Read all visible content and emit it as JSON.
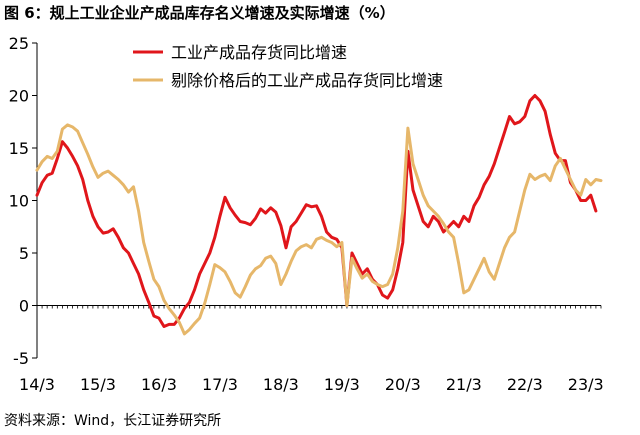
{
  "title": "图 6：规上工业企业产成品库存名义增速及实际增速（%）",
  "source": "资料来源：Wind，长江证券研究所",
  "colors": {
    "nominal": "#e0161b",
    "real": "#e6b76a",
    "axis": "#000000"
  },
  "chart_data": {
    "type": "line",
    "title": "图 6：规上工业企业产成品库存名义增速及实际增速（%）",
    "xlabel": "",
    "ylabel": "",
    "ylim": [
      -5,
      25
    ],
    "yticks": [
      -5,
      0,
      5,
      10,
      15,
      20,
      25
    ],
    "xlim": [
      "2014-03",
      "2023-06"
    ],
    "xtick_labels": [
      "14/3",
      "15/3",
      "16/3",
      "17/3",
      "18/3",
      "19/3",
      "20/3",
      "21/3",
      "22/3",
      "23/3"
    ],
    "grid": false,
    "legend_position": "top-center",
    "series": [
      {
        "name": "工业产成品存货同比增速",
        "color": "#e0161b",
        "points": [
          [
            "2014-03",
            10.5
          ],
          [
            "2014-04",
            11.7
          ],
          [
            "2014-05",
            12.4
          ],
          [
            "2014-06",
            12.6
          ],
          [
            "2014-07",
            14.0
          ],
          [
            "2014-08",
            15.6
          ],
          [
            "2014-09",
            15.0
          ],
          [
            "2014-10",
            14.2
          ],
          [
            "2014-11",
            13.3
          ],
          [
            "2014-12",
            12.0
          ],
          [
            "2015-01",
            10.0
          ],
          [
            "2015-02",
            8.5
          ],
          [
            "2015-03",
            7.5
          ],
          [
            "2015-04",
            6.9
          ],
          [
            "2015-05",
            7.0
          ],
          [
            "2015-06",
            7.3
          ],
          [
            "2015-07",
            6.5
          ],
          [
            "2015-08",
            5.5
          ],
          [
            "2015-09",
            5.0
          ],
          [
            "2015-10",
            4.0
          ],
          [
            "2015-11",
            3.0
          ],
          [
            "2015-12",
            1.5
          ],
          [
            "2016-01",
            0.3
          ],
          [
            "2016-02",
            -1.0
          ],
          [
            "2016-03",
            -1.2
          ],
          [
            "2016-04",
            -2.0
          ],
          [
            "2016-05",
            -1.8
          ],
          [
            "2016-06",
            -1.8
          ],
          [
            "2016-07",
            -1.2
          ],
          [
            "2016-08",
            -0.3
          ],
          [
            "2016-09",
            0.3
          ],
          [
            "2016-10",
            1.5
          ],
          [
            "2016-11",
            3.0
          ],
          [
            "2016-12",
            4.0
          ],
          [
            "2017-01",
            5.0
          ],
          [
            "2017-02",
            6.5
          ],
          [
            "2017-03",
            8.5
          ],
          [
            "2017-04",
            10.3
          ],
          [
            "2017-05",
            9.3
          ],
          [
            "2017-06",
            8.6
          ],
          [
            "2017-07",
            8.0
          ],
          [
            "2017-08",
            7.9
          ],
          [
            "2017-09",
            7.7
          ],
          [
            "2017-10",
            8.3
          ],
          [
            "2017-11",
            9.2
          ],
          [
            "2017-12",
            8.8
          ],
          [
            "2018-01",
            9.3
          ],
          [
            "2018-02",
            8.9
          ],
          [
            "2018-03",
            7.6
          ],
          [
            "2018-04",
            5.5
          ],
          [
            "2018-05",
            7.5
          ],
          [
            "2018-06",
            8.0
          ],
          [
            "2018-07",
            8.8
          ],
          [
            "2018-08",
            9.6
          ],
          [
            "2018-09",
            9.4
          ],
          [
            "2018-10",
            9.5
          ],
          [
            "2018-11",
            8.5
          ],
          [
            "2018-12",
            7.0
          ],
          [
            "2019-01",
            6.5
          ],
          [
            "2019-02",
            6.3
          ],
          [
            "2019-03",
            5.5
          ],
          [
            "2019-04",
            0.0
          ],
          [
            "2019-05",
            5.0
          ],
          [
            "2019-06",
            4.0
          ],
          [
            "2019-07",
            3.0
          ],
          [
            "2019-08",
            3.5
          ],
          [
            "2019-09",
            2.5
          ],
          [
            "2019-10",
            2.0
          ],
          [
            "2019-11",
            1.0
          ],
          [
            "2019-12",
            0.7
          ],
          [
            "2020-01",
            1.5
          ],
          [
            "2020-02",
            3.5
          ],
          [
            "2020-03",
            6.0
          ],
          [
            "2020-04",
            14.7
          ],
          [
            "2020-05",
            11.0
          ],
          [
            "2020-06",
            9.5
          ],
          [
            "2020-07",
            8.0
          ],
          [
            "2020-08",
            7.5
          ],
          [
            "2020-09",
            8.5
          ],
          [
            "2020-10",
            8.0
          ],
          [
            "2020-11",
            7.0
          ],
          [
            "2020-12",
            7.5
          ],
          [
            "2021-01",
            8.0
          ],
          [
            "2021-02",
            7.5
          ],
          [
            "2021-03",
            8.5
          ],
          [
            "2021-04",
            8.0
          ],
          [
            "2021-05",
            9.5
          ],
          [
            "2021-06",
            10.3
          ],
          [
            "2021-07",
            11.5
          ],
          [
            "2021-08",
            12.3
          ],
          [
            "2021-09",
            13.5
          ],
          [
            "2021-10",
            15.0
          ],
          [
            "2021-11",
            16.5
          ],
          [
            "2021-12",
            18.0
          ],
          [
            "2022-01",
            17.3
          ],
          [
            "2022-02",
            17.5
          ],
          [
            "2022-03",
            18.0
          ],
          [
            "2022-04",
            19.5
          ],
          [
            "2022-05",
            20.0
          ],
          [
            "2022-06",
            19.5
          ],
          [
            "2022-07",
            18.5
          ],
          [
            "2022-08",
            16.3
          ],
          [
            "2022-09",
            14.5
          ],
          [
            "2022-10",
            13.8
          ],
          [
            "2022-11",
            13.8
          ],
          [
            "2022-12",
            11.7
          ],
          [
            "2023-01",
            11.0
          ],
          [
            "2023-02",
            10.0
          ],
          [
            "2023-03",
            10.0
          ],
          [
            "2023-04",
            10.5
          ],
          [
            "2023-05",
            9.0
          ]
        ]
      },
      {
        "name": "剔除价格后的工业产成品存货同比增速",
        "color": "#e6b76a",
        "points": [
          [
            "2014-03",
            12.9
          ],
          [
            "2014-04",
            13.7
          ],
          [
            "2014-05",
            14.2
          ],
          [
            "2014-06",
            14.0
          ],
          [
            "2014-07",
            14.7
          ],
          [
            "2014-08",
            16.8
          ],
          [
            "2014-09",
            17.2
          ],
          [
            "2014-10",
            17.0
          ],
          [
            "2014-11",
            16.6
          ],
          [
            "2014-12",
            15.5
          ],
          [
            "2015-01",
            14.4
          ],
          [
            "2015-02",
            13.2
          ],
          [
            "2015-03",
            12.2
          ],
          [
            "2015-04",
            12.6
          ],
          [
            "2015-05",
            12.8
          ],
          [
            "2015-06",
            12.4
          ],
          [
            "2015-07",
            12.0
          ],
          [
            "2015-08",
            11.5
          ],
          [
            "2015-09",
            10.8
          ],
          [
            "2015-10",
            11.3
          ],
          [
            "2015-11",
            9.0
          ],
          [
            "2015-12",
            6.0
          ],
          [
            "2016-01",
            4.2
          ],
          [
            "2016-02",
            2.5
          ],
          [
            "2016-03",
            1.8
          ],
          [
            "2016-04",
            0.5
          ],
          [
            "2016-05",
            -0.3
          ],
          [
            "2016-06",
            -0.9
          ],
          [
            "2016-07",
            -1.6
          ],
          [
            "2016-08",
            -2.7
          ],
          [
            "2016-09",
            -2.3
          ],
          [
            "2016-10",
            -1.7
          ],
          [
            "2016-11",
            -1.2
          ],
          [
            "2016-12",
            0.2
          ],
          [
            "2017-01",
            2.0
          ],
          [
            "2017-02",
            3.9
          ],
          [
            "2017-03",
            3.6
          ],
          [
            "2017-04",
            3.2
          ],
          [
            "2017-05",
            2.3
          ],
          [
            "2017-06",
            1.2
          ],
          [
            "2017-07",
            0.8
          ],
          [
            "2017-08",
            1.8
          ],
          [
            "2017-09",
            2.9
          ],
          [
            "2017-10",
            3.5
          ],
          [
            "2017-11",
            3.8
          ],
          [
            "2017-12",
            4.5
          ],
          [
            "2018-01",
            4.7
          ],
          [
            "2018-02",
            4.0
          ],
          [
            "2018-03",
            2.0
          ],
          [
            "2018-04",
            3.0
          ],
          [
            "2018-05",
            4.2
          ],
          [
            "2018-06",
            5.2
          ],
          [
            "2018-07",
            5.6
          ],
          [
            "2018-08",
            5.8
          ],
          [
            "2018-09",
            5.5
          ],
          [
            "2018-10",
            6.3
          ],
          [
            "2018-11",
            6.5
          ],
          [
            "2018-12",
            6.2
          ],
          [
            "2019-01",
            6.0
          ],
          [
            "2019-02",
            5.6
          ],
          [
            "2019-03",
            6.0
          ],
          [
            "2019-04",
            0.0
          ],
          [
            "2019-05",
            4.5
          ],
          [
            "2019-06",
            3.5
          ],
          [
            "2019-07",
            2.6
          ],
          [
            "2019-08",
            3.0
          ],
          [
            "2019-09",
            2.3
          ],
          [
            "2019-10",
            2.0
          ],
          [
            "2019-11",
            1.8
          ],
          [
            "2019-12",
            2.0
          ],
          [
            "2020-01",
            3.0
          ],
          [
            "2020-02",
            5.5
          ],
          [
            "2020-03",
            9.0
          ],
          [
            "2020-04",
            16.9
          ],
          [
            "2020-05",
            13.5
          ],
          [
            "2020-06",
            12.0
          ],
          [
            "2020-07",
            10.5
          ],
          [
            "2020-08",
            9.5
          ],
          [
            "2020-09",
            9.0
          ],
          [
            "2020-10",
            8.5
          ],
          [
            "2020-11",
            7.8
          ],
          [
            "2020-12",
            7.0
          ],
          [
            "2021-01",
            6.5
          ],
          [
            "2021-02",
            4.0
          ],
          [
            "2021-03",
            1.2
          ],
          [
            "2021-04",
            1.5
          ],
          [
            "2021-05",
            2.5
          ],
          [
            "2021-06",
            3.5
          ],
          [
            "2021-07",
            4.5
          ],
          [
            "2021-08",
            3.2
          ],
          [
            "2021-09",
            2.5
          ],
          [
            "2021-10",
            4.0
          ],
          [
            "2021-11",
            5.5
          ],
          [
            "2021-12",
            6.5
          ],
          [
            "2022-01",
            7.0
          ],
          [
            "2022-02",
            9.0
          ],
          [
            "2022-03",
            11.0
          ],
          [
            "2022-04",
            12.5
          ],
          [
            "2022-05",
            12.0
          ],
          [
            "2022-06",
            12.3
          ],
          [
            "2022-07",
            12.5
          ],
          [
            "2022-08",
            11.9
          ],
          [
            "2022-09",
            13.3
          ],
          [
            "2022-10",
            14.0
          ],
          [
            "2022-11",
            13.0
          ],
          [
            "2022-12",
            12.0
          ],
          [
            "2023-01",
            11.0
          ],
          [
            "2023-02",
            10.5
          ],
          [
            "2023-03",
            12.0
          ],
          [
            "2023-04",
            11.5
          ],
          [
            "2023-05",
            12.0
          ],
          [
            "2023-06",
            11.9
          ]
        ]
      }
    ]
  }
}
